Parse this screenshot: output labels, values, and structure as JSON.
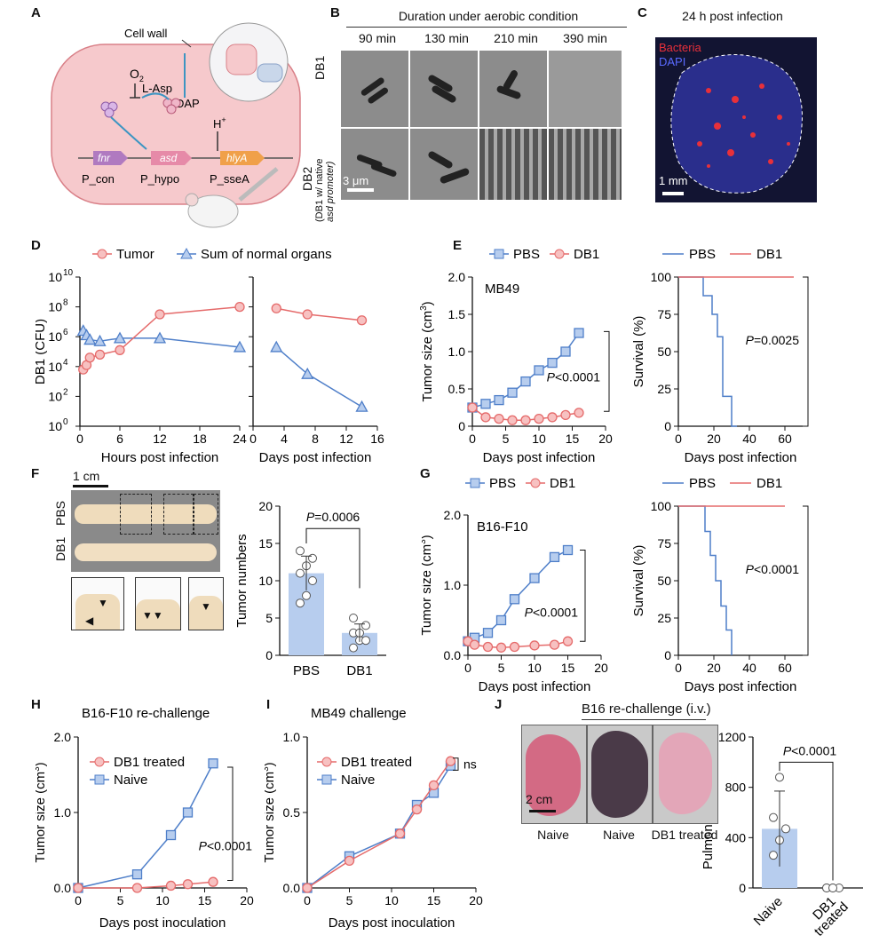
{
  "panel_letters": [
    "A",
    "B",
    "C",
    "D",
    "E",
    "F",
    "G",
    "H",
    "I",
    "J"
  ],
  "panelA": {
    "cell_wall": "Cell wall",
    "o2": "O",
    "o2_sub": "2",
    "l_asp": "L-Asp",
    "dap": "DAP",
    "h_plus": "H",
    "h_sup": "+",
    "genes": [
      "fnr",
      "asd",
      "hlyA"
    ],
    "promoters": [
      "P_con",
      "P_hypo",
      "P_sseA"
    ],
    "colors": {
      "cell": "#f6c9cc",
      "cell_edge": "#d98088",
      "fnr": "#b07ac0",
      "asd": "#e68aa8",
      "hlyA": "#f0a04a",
      "arrow": "#3d95c2"
    }
  },
  "panelB": {
    "title": "Duration under aerobic condition",
    "times": [
      "90 min",
      "130 min",
      "210 min",
      "390 min"
    ],
    "row1_label": "DB1",
    "row2_label": "DB2",
    "row2_sublabel1": "(DB1 w/ native",
    "row2_sublabel2": "asd promoter)",
    "scale": "3 μm"
  },
  "panelC": {
    "title": "24 h post infection",
    "legend": [
      "Bacteria",
      "DAPI"
    ],
    "scale": "1 mm",
    "colors": {
      "bacteria": "#e8303a",
      "dapi": "#4a5ad8",
      "bg": "#121432"
    }
  },
  "panelD": {
    "legend": [
      "Tumor",
      "Sum of normal organs"
    ],
    "ylabel": "DB1 (CFU)",
    "yticks": [
      "10",
      "10",
      "10",
      "10",
      "10",
      "10"
    ],
    "ytick_exp": [
      "0",
      "2",
      "4",
      "6",
      "8",
      "10"
    ],
    "left_xlabel": "Hours post infection",
    "left_xticks": [
      "0",
      "6",
      "12",
      "18",
      "24"
    ],
    "right_xlabel": "Days post infection",
    "right_xticks": [
      "0",
      "4",
      "8",
      "12",
      "16"
    ]
  },
  "panelE": {
    "legend": [
      "PBS",
      "DB1"
    ],
    "model": "MB49",
    "ylabel": "Tumor size (cm",
    "ylabel_sup": "3",
    "yticks": [
      "0",
      "0.5",
      "1.0",
      "1.5",
      "2.0"
    ],
    "xticks": [
      "0",
      "5",
      "10",
      "15",
      "20"
    ],
    "xlabel": "Days post infection",
    "pval": "<0.0001",
    "surv_legend": [
      "PBS",
      "DB1"
    ],
    "surv_ylabel": "Survival (%)",
    "surv_yticks": [
      "0",
      "25",
      "50",
      "75",
      "100"
    ],
    "surv_xticks": [
      "0",
      "20",
      "40",
      "60"
    ],
    "surv_xlabel": "Days post infection",
    "surv_pval": "=0.0025"
  },
  "panelF": {
    "scale": "1 cm",
    "rows": [
      "PBS",
      "DB1"
    ],
    "pval": "=0.0006",
    "ylabel": "Tumor numbers",
    "yticks": [
      "0",
      "5",
      "10",
      "15",
      "20"
    ],
    "categories": [
      "PBS",
      "DB1"
    ]
  },
  "panelG": {
    "legend": [
      "PBS",
      "DB1"
    ],
    "model": "B16-F10",
    "ylabel": "Tumor size (cm",
    "ylabel_sup": "3",
    "yticks": [
      "0.0",
      "1.0",
      "2.0"
    ],
    "xticks": [
      "0",
      "5",
      "10",
      "15",
      "20"
    ],
    "xlabel": "Days post infection",
    "pval": "<0.0001",
    "surv_legend": [
      "PBS",
      "DB1"
    ],
    "surv_ylabel": "Survival (%)",
    "surv_yticks": [
      "0",
      "25",
      "50",
      "75",
      "100"
    ],
    "surv_xticks": [
      "0",
      "20",
      "40",
      "60"
    ],
    "surv_xlabel": "Days post infection",
    "surv_pval": "<0.0001"
  },
  "panelH": {
    "title": "B16-F10 re-challenge",
    "legend": [
      "DB1 treated",
      "Naive"
    ],
    "ylabel": "Tumor size (cm",
    "ylabel_sup": "3",
    "yticks": [
      "0.0",
      "1.0",
      "2.0"
    ],
    "xticks": [
      "0",
      "5",
      "10",
      "15",
      "20"
    ],
    "xlabel": "Days post inoculation",
    "pval": "<0.0001"
  },
  "panelI": {
    "title": "MB49 challenge",
    "legend": [
      "DB1 treated",
      "Naive"
    ],
    "ylabel": "Tumor size (cm",
    "ylabel_sup": "3",
    "yticks": [
      "0.0",
      "0.5",
      "1.0"
    ],
    "xticks": [
      "0",
      "5",
      "10",
      "15",
      "20"
    ],
    "xlabel": "Days post inoculation",
    "ns": "ns"
  },
  "panelJ": {
    "title": "B16 re-challenge (i.v.)",
    "scale": "2 cm",
    "image_labels": [
      "Naive",
      "Naive",
      "DB1 treated"
    ],
    "pval": "<0.0001",
    "ylabel": "Pulmonary nodules",
    "yticks": [
      "0",
      "400",
      "800",
      "1200"
    ],
    "categories": [
      "Naive",
      "DB1"
    ],
    "categories_sub": "treated"
  },
  "p_letter": "P",
  "colors": {
    "red": "#e56b6b",
    "red_fill": "#f7c1c1",
    "blue": "#4f7fc9",
    "blue_fill": "#b7cdee"
  },
  "chart_data": [
    {
      "id": "D-left",
      "type": "line",
      "xlabel": "Hours post infection",
      "ylabel": "DB1 (CFU)",
      "xlim": [
        0,
        24
      ],
      "ylim_log10": [
        0,
        10
      ],
      "series": [
        {
          "name": "Tumor",
          "x": [
            0.5,
            1,
            1.5,
            3,
            6,
            12,
            24
          ],
          "log10_y": [
            3.8,
            4.1,
            4.6,
            4.8,
            5.1,
            7.5,
            8
          ]
        },
        {
          "name": "Sum of normal organs",
          "x": [
            0.5,
            1,
            1.5,
            3,
            6,
            12,
            24
          ],
          "log10_y": [
            6.4,
            6.1,
            5.8,
            5.7,
            5.9,
            5.9,
            5.3
          ]
        }
      ]
    },
    {
      "id": "D-right",
      "type": "line",
      "xlabel": "Days post infection",
      "xlim": [
        0,
        16
      ],
      "ylim_log10": [
        0,
        10
      ],
      "series": [
        {
          "name": "Tumor",
          "x": [
            3,
            7,
            14
          ],
          "log10_y": [
            7.9,
            7.5,
            7.1
          ]
        },
        {
          "name": "Sum of normal organs",
          "x": [
            3,
            7,
            14
          ],
          "log10_y": [
            5.3,
            3.5,
            1.3
          ]
        }
      ]
    },
    {
      "id": "E-growth",
      "type": "line",
      "title": "MB49",
      "xlabel": "Days post infection",
      "ylabel": "Tumor size (cm3)",
      "xlim": [
        0,
        20
      ],
      "ylim": [
        0,
        2
      ],
      "series": [
        {
          "name": "PBS",
          "x": [
            0,
            2,
            4,
            6,
            8,
            10,
            12,
            14,
            16
          ],
          "y": [
            0.25,
            0.3,
            0.35,
            0.45,
            0.6,
            0.75,
            0.85,
            1.0,
            1.25
          ]
        },
        {
          "name": "DB1",
          "x": [
            0,
            2,
            4,
            6,
            8,
            10,
            12,
            14,
            16
          ],
          "y": [
            0.25,
            0.12,
            0.1,
            0.08,
            0.08,
            0.1,
            0.12,
            0.15,
            0.18
          ]
        }
      ]
    },
    {
      "id": "E-survival",
      "type": "line",
      "xlabel": "Days post infection",
      "ylabel": "Survival (%)",
      "xlim": [
        0,
        65
      ],
      "ylim": [
        0,
        100
      ],
      "series": [
        {
          "name": "PBS",
          "x": [
            0,
            14,
            14,
            19,
            19,
            22,
            22,
            25,
            25,
            30,
            30,
            33,
            33
          ],
          "y": [
            100,
            100,
            87.5,
            87.5,
            75,
            75,
            60,
            60,
            20,
            20,
            0,
            0,
            0
          ]
        },
        {
          "name": "DB1",
          "x": [
            0,
            65
          ],
          "y": [
            100,
            100
          ]
        }
      ]
    },
    {
      "id": "F-bar",
      "type": "bar",
      "ylabel": "Tumor numbers",
      "categories": [
        "PBS",
        "DB1"
      ],
      "values": [
        11,
        3
      ],
      "ylim": [
        0,
        20
      ],
      "points": [
        [
          7,
          8,
          10,
          11,
          12,
          13,
          14
        ],
        [
          1,
          2,
          2,
          3,
          3,
          4,
          5
        ]
      ]
    },
    {
      "id": "G-growth",
      "type": "line",
      "title": "B16-F10",
      "xlabel": "Days post infection",
      "ylabel": "Tumor size (cm3)",
      "xlim": [
        0,
        20
      ],
      "ylim": [
        0,
        2
      ],
      "series": [
        {
          "name": "PBS",
          "x": [
            0,
            1,
            3,
            5,
            7,
            10,
            13,
            15
          ],
          "y": [
            0.2,
            0.25,
            0.32,
            0.5,
            0.8,
            1.1,
            1.4,
            1.5
          ]
        },
        {
          "name": "DB1",
          "x": [
            0,
            1,
            3,
            5,
            7,
            10,
            13,
            15
          ],
          "y": [
            0.2,
            0.15,
            0.12,
            0.11,
            0.12,
            0.14,
            0.15,
            0.2
          ]
        }
      ]
    },
    {
      "id": "G-survival",
      "type": "line",
      "xlabel": "Days post infection",
      "ylabel": "Survival (%)",
      "xlim": [
        0,
        65
      ],
      "ylim": [
        0,
        100
      ],
      "series": [
        {
          "name": "PBS",
          "x": [
            0,
            15,
            15,
            18,
            18,
            21,
            21,
            24,
            24,
            27,
            27,
            30,
            30
          ],
          "y": [
            100,
            100,
            83,
            83,
            67,
            67,
            50,
            50,
            33,
            33,
            17,
            17,
            0
          ]
        },
        {
          "name": "DB1",
          "x": [
            0,
            60
          ],
          "y": [
            100,
            100
          ]
        }
      ]
    },
    {
      "id": "H",
      "type": "line",
      "title": "B16-F10 re-challenge",
      "xlabel": "Days post inoculation",
      "ylabel": "Tumor size (cm3)",
      "xlim": [
        0,
        20
      ],
      "ylim": [
        0,
        2
      ],
      "series": [
        {
          "name": "DB1 treated",
          "x": [
            0,
            7,
            11,
            13,
            16
          ],
          "y": [
            0,
            0,
            0.03,
            0.05,
            0.08
          ]
        },
        {
          "name": "Naive",
          "x": [
            0,
            7,
            11,
            13,
            16
          ],
          "y": [
            0,
            0.18,
            0.7,
            1.0,
            1.65
          ]
        }
      ]
    },
    {
      "id": "I",
      "type": "line",
      "title": "MB49 challenge",
      "xlabel": "Days post inoculation",
      "ylabel": "Tumor size (cm3)",
      "xlim": [
        0,
        20
      ],
      "ylim": [
        0,
        1
      ],
      "series": [
        {
          "name": "DB1 treated",
          "x": [
            0,
            5,
            11,
            13,
            15,
            17
          ],
          "y": [
            0,
            0.18,
            0.36,
            0.52,
            0.68,
            0.84
          ]
        },
        {
          "name": "Naive",
          "x": [
            0,
            5,
            11,
            13,
            15,
            17
          ],
          "y": [
            0,
            0.21,
            0.36,
            0.55,
            0.63,
            0.81
          ]
        }
      ]
    },
    {
      "id": "J-bar",
      "type": "bar",
      "ylabel": "Pulmonary nodules",
      "categories": [
        "Naive",
        "DB1 treated"
      ],
      "values": [
        470,
        0
      ],
      "ylim": [
        0,
        1200
      ],
      "points": [
        [
          260,
          380,
          470,
          560,
          880
        ],
        [
          0,
          0,
          0,
          0,
          0
        ]
      ]
    }
  ]
}
